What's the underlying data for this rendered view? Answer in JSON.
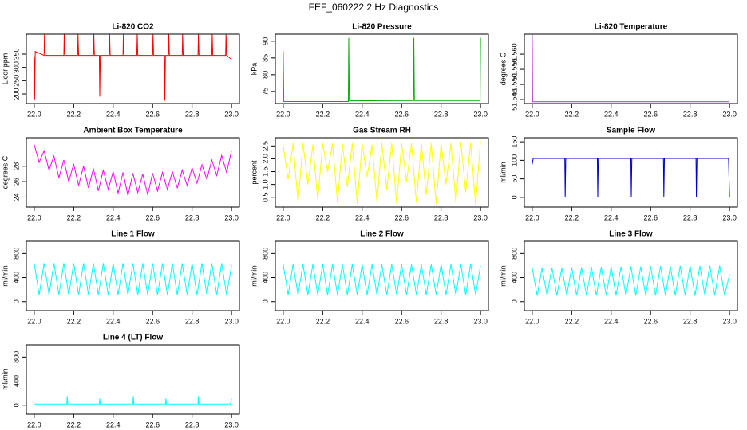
{
  "title": "FEF_060222  2 Hz Diagnostics",
  "chart_data": [
    {
      "type": "line",
      "title": "Li-820 CO2",
      "ylabel": "Licor ppm",
      "color": "#ff0000",
      "x": [
        22.0,
        22.002,
        22.005,
        22.05,
        22.052,
        22.055,
        22.15,
        22.152,
        22.155,
        22.22,
        22.222,
        22.225,
        22.3,
        22.302,
        22.305,
        22.33,
        22.332,
        22.335,
        22.38,
        22.382,
        22.385,
        22.45,
        22.452,
        22.455,
        22.52,
        22.522,
        22.525,
        22.6,
        22.602,
        22.605,
        22.66,
        22.662,
        22.665,
        22.68,
        22.682,
        22.685,
        22.75,
        22.752,
        22.755,
        22.83,
        22.832,
        22.835,
        22.9,
        22.902,
        22.905,
        22.97,
        22.972,
        22.975,
        23.0
      ],
      "values": [
        340,
        180,
        360,
        345,
        425,
        345,
        345,
        425,
        345,
        345,
        425,
        345,
        345,
        425,
        345,
        345,
        190,
        345,
        345,
        425,
        345,
        345,
        425,
        345,
        345,
        425,
        345,
        345,
        425,
        345,
        345,
        175,
        345,
        345,
        425,
        345,
        345,
        425,
        345,
        345,
        425,
        345,
        345,
        425,
        345,
        345,
        425,
        345,
        330
      ],
      "xlim": [
        21.96,
        23.04
      ],
      "ylim": [
        164,
        425
      ],
      "xticks": [
        {
          "value": 22,
          "label": "22.0"
        },
        22.2,
        22.4,
        22.6,
        22.8,
        {
          "value": 23,
          "label": "23.0"
        }
      ],
      "yticks": [
        200,
        250,
        300,
        350
      ]
    },
    {
      "type": "line",
      "title": "Li-820 Pressure",
      "ylabel": "kPa",
      "color": "#00b000",
      "x": [
        22.0,
        22.003,
        22.33,
        22.332,
        22.335,
        22.66,
        22.662,
        22.665,
        22.998,
        23.0
      ],
      "values": [
        87,
        72,
        72,
        91,
        72.2,
        72.3,
        91,
        72.3,
        72.3,
        91
      ],
      "xlim": [
        21.96,
        23.04
      ],
      "ylim": [
        71.4,
        92.1
      ],
      "xticks": [
        {
          "value": 22,
          "label": "22.0"
        },
        22.2,
        22.4,
        22.6,
        22.8,
        {
          "value": 23,
          "label": "23.0"
        }
      ],
      "yticks": [
        75,
        80,
        85,
        90
      ]
    },
    {
      "type": "line",
      "title": "Li-820 Temperature",
      "ylabel": "degrees C",
      "color": "#b030d0",
      "x": [
        22.0,
        22.002,
        23.0
      ],
      "values": [
        51.567,
        51.5443,
        51.5443
      ],
      "xlim": [
        21.96,
        23.04
      ],
      "ylim": [
        51.5437,
        51.5666
      ],
      "xticks": [
        {
          "value": 22,
          "label": "22.0"
        },
        22.2,
        22.4,
        22.6,
        22.8,
        {
          "value": 23,
          "label": "23.0"
        }
      ],
      "yticks": [
        51.545,
        {
          "value": 51.55,
          "label": "51.550"
        },
        51.555,
        {
          "value": 51.56,
          "label": "51.560"
        }
      ]
    },
    {
      "type": "line",
      "title": "Ambient Box Temperature",
      "ylabel": "degrees C",
      "color": "#ff00ff",
      "x": [
        22.0,
        22.025,
        22.05,
        22.075,
        22.1,
        22.125,
        22.15,
        22.175,
        22.2,
        22.225,
        22.25,
        22.275,
        22.3,
        22.325,
        22.35,
        22.375,
        22.4,
        22.425,
        22.45,
        22.475,
        22.5,
        22.525,
        22.55,
        22.575,
        22.6,
        22.625,
        22.65,
        22.675,
        22.7,
        22.725,
        22.75,
        22.775,
        22.8,
        22.825,
        22.85,
        22.875,
        22.9,
        22.925,
        22.95,
        22.975,
        23.0
      ],
      "values": [
        30.8,
        28.5,
        30.0,
        27.5,
        29.3,
        26.5,
        28.8,
        26.0,
        28.3,
        25.5,
        28.0,
        25.2,
        27.7,
        24.8,
        27.5,
        25.0,
        27.3,
        24.5,
        27.2,
        24.2,
        27.1,
        24.6,
        27.0,
        24.3,
        27.1,
        24.8,
        27.2,
        25.0,
        27.3,
        25.2,
        27.5,
        25.5,
        27.8,
        25.8,
        28.2,
        26.3,
        28.8,
        26.8,
        29.4,
        27.2,
        30.0
      ],
      "xlim": [
        21.96,
        23.04
      ],
      "ylim": [
        22.7,
        31.7
      ],
      "xticks": [
        {
          "value": 22,
          "label": "22.0"
        },
        22.2,
        22.4,
        22.6,
        22.8,
        {
          "value": 23,
          "label": "23.0"
        }
      ],
      "yticks": [
        24,
        26,
        28
      ]
    },
    {
      "type": "line",
      "title": "Gas Stream RH",
      "ylabel": "percent",
      "color": "#ffff00",
      "x": [
        22.0,
        22.025,
        22.05,
        22.075,
        22.1,
        22.125,
        22.15,
        22.175,
        22.2,
        22.225,
        22.25,
        22.275,
        22.3,
        22.325,
        22.35,
        22.375,
        22.4,
        22.425,
        22.45,
        22.475,
        22.5,
        22.525,
        22.55,
        22.575,
        22.6,
        22.625,
        22.65,
        22.675,
        22.7,
        22.725,
        22.75,
        22.775,
        22.8,
        22.825,
        22.85,
        22.875,
        22.9,
        22.925,
        22.95,
        22.975,
        23.0
      ],
      "values": [
        2.5,
        1.2,
        2.6,
        0.3,
        2.6,
        1.0,
        2.55,
        0.4,
        2.6,
        1.5,
        2.6,
        0.3,
        2.6,
        0.9,
        2.6,
        0.25,
        2.6,
        1.3,
        2.55,
        0.3,
        2.6,
        0.8,
        2.6,
        0.25,
        2.6,
        1.1,
        2.6,
        0.3,
        2.6,
        0.6,
        2.6,
        0.25,
        2.6,
        1.0,
        2.6,
        0.3,
        2.65,
        0.7,
        2.65,
        0.2,
        2.7
      ],
      "xlim": [
        21.96,
        23.04
      ],
      "ylim": [
        0.12,
        2.82
      ],
      "xticks": [
        {
          "value": 22,
          "label": "22.0"
        },
        22.2,
        22.4,
        22.6,
        22.8,
        {
          "value": 23,
          "label": "23.0"
        }
      ],
      "yticks": [
        0.5,
        {
          "value": 1,
          "label": "1.0"
        },
        1.5,
        {
          "value": 2,
          "label": "2.0"
        },
        2.5
      ]
    },
    {
      "type": "line",
      "title": "Sample Flow",
      "ylabel": "ml/min",
      "color": "#0000cc",
      "x": [
        22.0,
        22.005,
        22.165,
        22.167,
        22.17,
        22.33,
        22.332,
        22.335,
        22.5,
        22.502,
        22.505,
        22.665,
        22.667,
        22.67,
        22.83,
        22.832,
        22.835,
        22.995,
        23.0
      ],
      "values": [
        90,
        105,
        105,
        0,
        105,
        105,
        0,
        105,
        105,
        0,
        105,
        105,
        0,
        105,
        105,
        0,
        105,
        105,
        0
      ],
      "xlim": [
        21.96,
        23.04
      ],
      "ylim": [
        -26,
        161
      ],
      "xticks": [
        {
          "value": 22,
          "label": "22.0"
        },
        22.2,
        22.4,
        22.6,
        22.8,
        {
          "value": 23,
          "label": "23.0"
        }
      ],
      "yticks": [
        0,
        50,
        100,
        150
      ]
    },
    {
      "type": "line",
      "title": "Line 1 Flow",
      "ylabel": "ml/min",
      "color": "#00ffff",
      "x": [
        22.0,
        22.025,
        22.05,
        22.075,
        22.1,
        22.125,
        22.15,
        22.175,
        22.2,
        22.225,
        22.25,
        22.275,
        22.3,
        22.325,
        22.35,
        22.375,
        22.4,
        22.425,
        22.45,
        22.475,
        22.5,
        22.525,
        22.55,
        22.575,
        22.6,
        22.625,
        22.65,
        22.675,
        22.7,
        22.725,
        22.75,
        22.775,
        22.8,
        22.825,
        22.85,
        22.875,
        22.9,
        22.925,
        22.95,
        22.975,
        23.0
      ],
      "values": [
        640,
        110,
        640,
        110,
        640,
        110,
        640,
        110,
        640,
        110,
        640,
        110,
        640,
        110,
        640,
        110,
        640,
        110,
        640,
        110,
        640,
        110,
        640,
        110,
        640,
        110,
        640,
        110,
        640,
        110,
        640,
        110,
        640,
        110,
        640,
        110,
        640,
        110,
        640,
        110,
        600
      ],
      "xlim": [
        21.96,
        23.04
      ],
      "ylim": [
        -149,
        1003
      ],
      "xticks": [
        {
          "value": 22,
          "label": "22.0"
        },
        22.2,
        22.4,
        22.6,
        22.8,
        {
          "value": 23,
          "label": "23.0"
        }
      ],
      "yticks": [
        0,
        400,
        800
      ]
    },
    {
      "type": "line",
      "title": "Line 2 Flow",
      "ylabel": "ml/min",
      "color": "#00ffff",
      "x": [
        22.0,
        22.025,
        22.05,
        22.075,
        22.1,
        22.125,
        22.15,
        22.175,
        22.2,
        22.225,
        22.25,
        22.275,
        22.3,
        22.325,
        22.35,
        22.375,
        22.4,
        22.425,
        22.45,
        22.475,
        22.5,
        22.525,
        22.55,
        22.575,
        22.6,
        22.625,
        22.65,
        22.675,
        22.7,
        22.725,
        22.75,
        22.775,
        22.8,
        22.825,
        22.85,
        22.875,
        22.9,
        22.925,
        22.95,
        22.975,
        23.0
      ],
      "values": [
        620,
        110,
        620,
        110,
        620,
        110,
        620,
        110,
        620,
        110,
        620,
        110,
        620,
        110,
        620,
        110,
        620,
        110,
        620,
        110,
        620,
        110,
        620,
        110,
        620,
        110,
        620,
        110,
        620,
        110,
        620,
        110,
        620,
        110,
        620,
        110,
        620,
        110,
        630,
        110,
        600
      ],
      "xlim": [
        21.96,
        23.04
      ],
      "ylim": [
        -149,
        1003
      ],
      "xticks": [
        {
          "value": 22,
          "label": "22.0"
        },
        22.2,
        22.4,
        22.6,
        22.8,
        {
          "value": 23,
          "label": "23.0"
        }
      ],
      "yticks": [
        0,
        400,
        800
      ]
    },
    {
      "type": "line",
      "title": "Line 3 Flow",
      "ylabel": "ml/min",
      "color": "#00ffff",
      "x": [
        22.0,
        22.025,
        22.05,
        22.075,
        22.1,
        22.125,
        22.15,
        22.175,
        22.2,
        22.225,
        22.25,
        22.275,
        22.3,
        22.325,
        22.35,
        22.375,
        22.4,
        22.425,
        22.45,
        22.475,
        22.5,
        22.525,
        22.55,
        22.575,
        22.6,
        22.625,
        22.65,
        22.675,
        22.7,
        22.725,
        22.75,
        22.775,
        22.8,
        22.825,
        22.85,
        22.875,
        22.9,
        22.925,
        22.95,
        22.975,
        23.0
      ],
      "values": [
        560,
        100,
        560,
        100,
        565,
        100,
        565,
        100,
        570,
        100,
        570,
        100,
        575,
        100,
        575,
        100,
        580,
        100,
        580,
        100,
        585,
        100,
        585,
        100,
        590,
        100,
        590,
        100,
        590,
        100,
        595,
        100,
        595,
        100,
        595,
        100,
        600,
        100,
        600,
        100,
        450
      ],
      "xlim": [
        21.96,
        23.04
      ],
      "ylim": [
        -149,
        1003
      ],
      "xticks": [
        {
          "value": 22,
          "label": "22.0"
        },
        22.2,
        22.4,
        22.6,
        22.8,
        {
          "value": 23,
          "label": "23.0"
        }
      ],
      "yticks": [
        0,
        400,
        800
      ]
    },
    {
      "type": "line",
      "title": "Line 4 (LT) Flow",
      "ylabel": "ml/min",
      "color": "#00ffff",
      "x": [
        22.0,
        22.165,
        22.167,
        22.17,
        22.33,
        22.332,
        22.335,
        22.5,
        22.502,
        22.505,
        22.665,
        22.667,
        22.67,
        22.83,
        22.832,
        22.835,
        22.995,
        23.0
      ],
      "values": [
        20,
        20,
        150,
        20,
        20,
        110,
        20,
        20,
        150,
        20,
        20,
        110,
        20,
        20,
        150,
        20,
        20,
        110
      ],
      "xlim": [
        21.96,
        23.04
      ],
      "ylim": [
        -149,
        1003
      ],
      "xticks": [
        {
          "value": 22,
          "label": "22.0"
        },
        22.2,
        22.4,
        22.6,
        22.8,
        {
          "value": 23,
          "label": "23.0"
        }
      ],
      "yticks": [
        0,
        400,
        800
      ]
    }
  ]
}
